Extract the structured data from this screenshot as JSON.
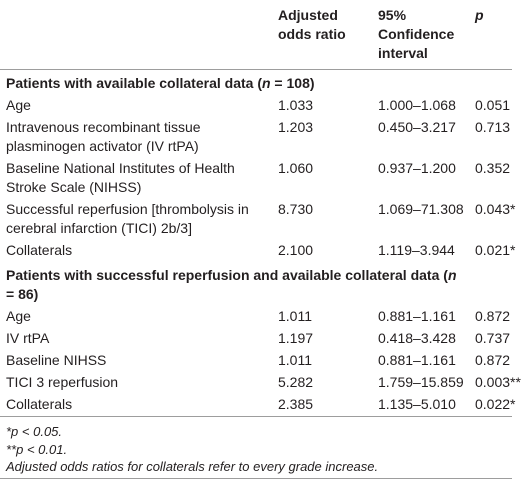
{
  "table": {
    "header": [
      [
        "Adjusted",
        "odds ratio"
      ],
      [
        "95%",
        "Confidence",
        "interval"
      ],
      [
        "p"
      ]
    ],
    "sections": [
      {
        "title": {
          "before": "Patients with available collateral data (",
          "var": "n",
          "after": " = 108)"
        },
        "rows": [
          [
            "Age",
            "1.033",
            "1.000–1.068",
            "0.051"
          ],
          [
            "Intravenous recombinant tissue plasminogen activator (IV rtPA)",
            "1.203",
            "0.450–3.217",
            "0.713"
          ],
          [
            "Baseline National Institutes of Health Stroke Scale (NIHSS)",
            "1.060",
            "0.937–1.200",
            "0.352"
          ],
          [
            "Successful reperfusion [thrombolysis in cerebral infarction (TICI) 2b/3]",
            "8.730",
            "1.069–71.308",
            "0.043*"
          ],
          [
            "Collaterals",
            "2.100",
            "1.119–3.944",
            "0.021*"
          ]
        ]
      },
      {
        "title": {
          "before": "Patients with successful reperfusion and available collateral data (",
          "var": "n",
          "after": " = 86)"
        },
        "rows": [
          [
            "Age",
            "1.011",
            "0.881–1.161",
            "0.872"
          ],
          [
            "IV rtPA",
            "1.197",
            "0.418–3.428",
            "0.737"
          ],
          [
            "Baseline NIHSS",
            "1.011",
            "0.881–1.161",
            "0.872"
          ],
          [
            "TICI 3 reperfusion",
            "5.282",
            "1.759–15.859",
            "0.003**"
          ],
          [
            "Collaterals",
            "2.385",
            "1.135–5.010",
            "0.022*"
          ]
        ]
      }
    ],
    "footnotes": [
      "*p < 0.05.",
      "**p < 0.01.",
      "Adjusted odds ratios for collaterals refer to every grade increase."
    ]
  }
}
